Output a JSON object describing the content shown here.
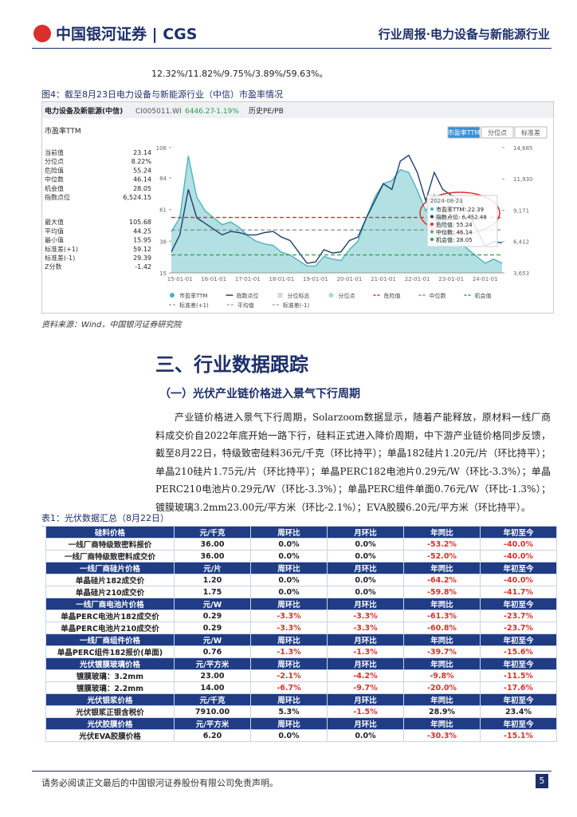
{
  "header": {
    "logo": "中国银河证券",
    "logo_en": "CGS",
    "report": "行业周报·电力设备与新能源行业"
  },
  "intro_text": "12.32%/11.82%/9.75%/3.89%/59.63%。",
  "figure": {
    "caption": "图4：截至8月23日电力设备与新能源行业（中信）市盈率情况",
    "toolbar": {
      "name": "电力设备及新能源(中信)",
      "code": "CI005011.WI",
      "price": "6446.27",
      "change": "-1.19%",
      "tab": "历史PE/PB"
    },
    "panel_title": "市盈率TTM",
    "buttons": [
      "市盈率TTM",
      "分位点",
      "标准差"
    ],
    "stats": [
      [
        "当前值",
        "23.14"
      ],
      [
        "分位点",
        "8.22%"
      ],
      [
        "危险值",
        "55.24"
      ],
      [
        "中位数",
        "46.14"
      ],
      [
        "机会值",
        "28.05"
      ],
      [
        "指数点位",
        "6,524.15"
      ],
      [
        "最大值",
        "105.68"
      ],
      [
        "平均值",
        "44.25"
      ],
      [
        "最小值",
        "15.95"
      ],
      [
        "标准差(+1)",
        "59.12"
      ],
      [
        "标准差(-1)",
        "29.39"
      ],
      [
        "Z分数",
        "-1.42"
      ]
    ],
    "chart": {
      "type": "area-line",
      "categories": [
        null,
        "15-01-01",
        null,
        null,
        null,
        "16-01-01",
        null,
        null,
        null,
        "17-01-01",
        null,
        null,
        null,
        "18-01-01",
        null,
        null,
        null,
        "19-01-01",
        null,
        null,
        null,
        "20-01-01",
        null,
        null,
        null,
        "21-01-01",
        null,
        null,
        null,
        "22-01-01",
        null,
        null,
        null,
        "23-01-01",
        null,
        null,
        null,
        "24-01-01",
        null,
        null
      ],
      "series": [
        {
          "name": "市盈率TTM",
          "color": "#4fb3bd",
          "fill": "#9fd8dc",
          "values": [
            45,
            55,
            100,
            70,
            60,
            55,
            50,
            52,
            48,
            42,
            38,
            36,
            35,
            30,
            28,
            24,
            20,
            20,
            27,
            25,
            24,
            32,
            38,
            55,
            70,
            80,
            82,
            90,
            88,
            75,
            60,
            72,
            55,
            45,
            38,
            32,
            27,
            22,
            25,
            22
          ]
        },
        {
          "name": "指数点位",
          "color": "#1d3f6e",
          "axis": "y2",
          "values": [
            5500,
            7000,
            11000,
            8500,
            8000,
            7500,
            7000,
            7300,
            7200,
            7000,
            7000,
            7200,
            7300,
            6800,
            6500,
            5500,
            4500,
            4600,
            5700,
            5400,
            5500,
            6500,
            6800,
            8500,
            10000,
            11500,
            11000,
            13500,
            14000,
            12500,
            10000,
            12500,
            11000,
            10500,
            10000,
            9000,
            7500,
            6000,
            6400,
            6300
          ]
        }
      ],
      "ylim": [
        15,
        106
      ],
      "yticks": [
        15,
        38,
        61,
        84,
        106
      ],
      "y2lim": [
        3653,
        14685
      ],
      "y2ticks": [
        {
          "value": 3653,
          "label": "3,653"
        },
        {
          "value": 6412,
          "label": "6,412"
        },
        {
          "value": 9171,
          "label": "9,171"
        },
        {
          "value": 11930,
          "label": "11,930"
        },
        {
          "value": 14685,
          "label": "14,685"
        }
      ],
      "ref_lines": [
        {
          "name": "危险值",
          "value": 55.24,
          "color": "#d9302c"
        },
        {
          "name": "中位数",
          "value": 46.14,
          "color": "#8a8a8a"
        },
        {
          "name": "机会值",
          "value": 28.05,
          "color": "#2e9d4a"
        }
      ],
      "legend_extra": [
        "分位标志",
        "分位点"
      ],
      "legend_row2": [
        "标准差(+1)",
        "平均值",
        "标准差(-1)"
      ],
      "tooltip": {
        "date": "2024-08-23",
        "rows": [
          "市盈率TTM: 22.39",
          "指数点位: 6,452.48",
          "危险值: 55.24",
          "中位数: 46.14",
          "机会值: 28.05"
        ]
      }
    },
    "source": "资料来源：Wind，中国银河证券研究院"
  },
  "section": {
    "heading": "三、行业数据跟踪",
    "subheading": "（一）光伏产业链价格进入景气下行周期",
    "paragraph": "产业链价格进入景气下行周期，Solarzoom数据显示，随着产能释放，原材料一线厂商料成交价自2022年底开始一路下行，硅料正式进入降价周期，中下游产业链价格同步反馈，截至8月22日，特级致密硅料36元/千克（环比持平）；单晶182硅片1.20元/片（环比持平）；单晶210硅片1.75元/片（环比持平）；单晶PERC182电池片0.29元/W（环比-3.3%）；单晶PERC210电池片0.29元/W（环比-3.3%）；单晶PERC组件单面0.76元/W（环比-1.3%）；镀膜玻璃3.2mm23.00元/平方米（环比-2.1%）；EVA胶膜6.20元/平方米（环比持平）。"
  },
  "table": {
    "caption": "表1：光伏数据汇总（8月22日）",
    "groups": [
      {
        "header": [
          "硅料价格",
          "元/千克",
          "周环比",
          "月环比",
          "年同比",
          "年初至今"
        ],
        "rows": [
          [
            "一线厂商特级致密料报价",
            "36.00",
            "0.0%",
            "0.0%",
            "-53.2%",
            "-40.0%"
          ],
          [
            "一线厂商特级致密料成交价",
            "36.00",
            "0.0%",
            "0.0%",
            "-52.0%",
            "-40.0%"
          ]
        ]
      },
      {
        "header": [
          "一线厂商硅片价格",
          "元/片",
          "周环比",
          "月环比",
          "年同比",
          "年初至今"
        ],
        "rows": [
          [
            "单晶硅片182成交价",
            "1.20",
            "0.0%",
            "0.0%",
            "-64.2%",
            "-40.0%"
          ],
          [
            "单晶硅片210成交价",
            "1.75",
            "0.0%",
            "0.0%",
            "-59.8%",
            "-41.7%"
          ]
        ]
      },
      {
        "header": [
          "一线厂商电池片价格",
          "元/W",
          "周环比",
          "月环比",
          "年同比",
          "年初至今"
        ],
        "rows": [
          [
            "单晶PERC电池片182成交价",
            "0.29",
            "-3.3%",
            "-3.3%",
            "-61.3%",
            "-23.7%"
          ],
          [
            "单晶PERC电池片210成交价",
            "0.29",
            "-3.3%",
            "-3.3%",
            "-60.8%",
            "-23.7%"
          ]
        ]
      },
      {
        "header": [
          "一线厂商组件价格",
          "元/W",
          "周环比",
          "月环比",
          "年同比",
          "年初至今"
        ],
        "rows": [
          [
            "单晶PERC组件182报价(单面)",
            "0.76",
            "-1.3%",
            "-1.3%",
            "-39.7%",
            "-15.6%"
          ]
        ]
      },
      {
        "header": [
          "光伏镀膜玻璃价格",
          "元/平方米",
          "周环比",
          "月环比",
          "年同比",
          "年初至今"
        ],
        "rows": [
          [
            "镀膜玻璃：3.2mm",
            "23.00",
            "-2.1%",
            "-4.2%",
            "-9.8%",
            "-11.5%"
          ],
          [
            "镀膜玻璃：2.2mm",
            "14.00",
            "-6.7%",
            "-9.7%",
            "-20.0%",
            "-17.6%"
          ]
        ]
      },
      {
        "header": [
          "光伏银浆价格",
          "元/千克",
          "周环比",
          "月环比",
          "年同比",
          "年初至今"
        ],
        "rows": [
          [
            "光伏银浆正银含税价",
            "7910.00",
            "5.3%",
            "-1.5%",
            "28.9%",
            "23.4%"
          ]
        ]
      },
      {
        "header": [
          "光伏胶膜价格",
          "元/平方米",
          "周环比",
          "月环比",
          "年同比",
          "年初至今"
        ],
        "rows": [
          [
            "光伏EVA胶膜价格",
            "6.20",
            "0.0%",
            "0.0%",
            "-30.3%",
            "-15.1%"
          ]
        ]
      }
    ]
  },
  "footer": {
    "disclaimer": "请务必阅读正文最后的中国银河证券股份有限公司免责声明。",
    "page": "5"
  }
}
